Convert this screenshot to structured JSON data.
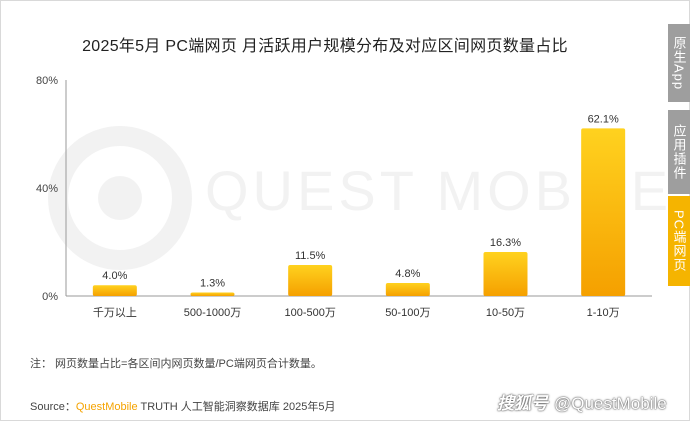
{
  "title": "2025年5月 PC端网页 月活跃用户规模分布及对应区间网页数量占比",
  "side_tabs": {
    "tab1": "原生App",
    "tab2": "应用插件",
    "tab3": "PC端网页"
  },
  "watermark": "QUEST MOBILE",
  "note": "注：  网页数量占比=各区间内网页数量/PC端网页合计数量。",
  "source": {
    "prefix": "Source：",
    "brand": "QuestMobile",
    "rest": " TRUTH 人工智能洞察数据库 2025年5月"
  },
  "credit": {
    "logo": "搜狐号",
    "handle": "@QuestMobile"
  },
  "colors": {
    "bar_top": "#ffd21f",
    "bar_bottom": "#f5a000",
    "active_tab": "#f5b400",
    "inactive_tab": "#9e9e9e"
  },
  "chart_data": {
    "type": "bar",
    "categories": [
      "千万以上",
      "500-1000万",
      "100-500万",
      "50-100万",
      "10-50万",
      "1-10万"
    ],
    "values": [
      4.0,
      1.3,
      11.5,
      4.8,
      16.3,
      62.1
    ],
    "value_labels": [
      "4.0%",
      "1.3%",
      "11.5%",
      "4.8%",
      "16.3%",
      "62.1%"
    ],
    "ylim": [
      0,
      80
    ],
    "yticks": [
      0,
      40,
      80
    ],
    "ytick_labels": [
      "0%",
      "40%",
      "80%"
    ],
    "title": "2025年5月 PC端网页 月活跃用户规模分布及对应区间网页数量占比",
    "grid": false
  }
}
